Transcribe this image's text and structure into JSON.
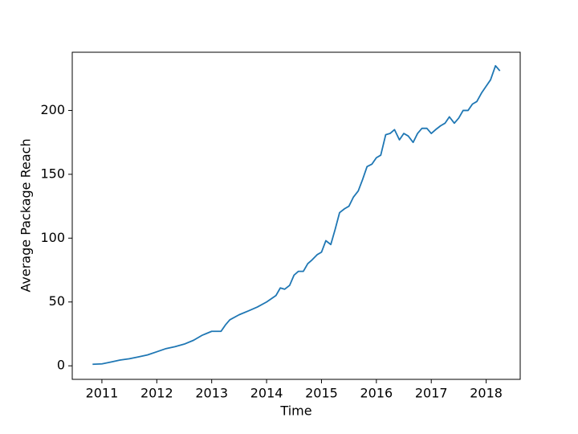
{
  "chart_data": {
    "type": "line",
    "x_label": "Time",
    "y_label": "Average Package Reach",
    "series": [
      {
        "color": "#1f77b4",
        "x": [
          2010.83,
          2011.0,
          2011.17,
          2011.33,
          2011.5,
          2011.67,
          2011.83,
          2012.0,
          2012.17,
          2012.33,
          2012.5,
          2012.67,
          2012.83,
          2013.0,
          2013.17,
          2013.25,
          2013.33,
          2013.5,
          2013.67,
          2013.83,
          2014.0,
          2014.17,
          2014.25,
          2014.33,
          2014.42,
          2014.5,
          2014.58,
          2014.67,
          2014.75,
          2014.83,
          2014.92,
          2015.0,
          2015.08,
          2015.17,
          2015.25,
          2015.33,
          2015.42,
          2015.5,
          2015.58,
          2015.67,
          2015.75,
          2015.83,
          2015.92,
          2016.0,
          2016.08,
          2016.17,
          2016.25,
          2016.33,
          2016.42,
          2016.5,
          2016.58,
          2016.67,
          2016.75,
          2016.83,
          2016.92,
          2017.0,
          2017.08,
          2017.17,
          2017.25,
          2017.33,
          2017.42,
          2017.5,
          2017.58,
          2017.67,
          2017.75,
          2017.83,
          2017.92,
          2018.0,
          2018.08,
          2018.17,
          2018.25
        ],
        "values": [
          1.2,
          1.5,
          3,
          4.5,
          5.5,
          7,
          8.5,
          11,
          13.5,
          15,
          17,
          20,
          24,
          27,
          27,
          32,
          36,
          40,
          43,
          46,
          50,
          55,
          61,
          60,
          63,
          71,
          74,
          74,
          80,
          83,
          87,
          89,
          98,
          95,
          107,
          120,
          123,
          125,
          132,
          137,
          146,
          156,
          158,
          163,
          165,
          181,
          182,
          185,
          177,
          182,
          180,
          175,
          182,
          186,
          186,
          182,
          185,
          188,
          190,
          195,
          190,
          194,
          200,
          200,
          205,
          207,
          214,
          219,
          224,
          235,
          231
        ]
      }
    ],
    "xlim": [
      2010.46,
      2018.62
    ],
    "xticks": [
      2011,
      2012,
      2013,
      2014,
      2015,
      2016,
      2017,
      2018
    ],
    "ylim": [
      -10.6,
      245.6
    ],
    "yticks": [
      0,
      50,
      100,
      150,
      200
    ],
    "grid": false
  }
}
